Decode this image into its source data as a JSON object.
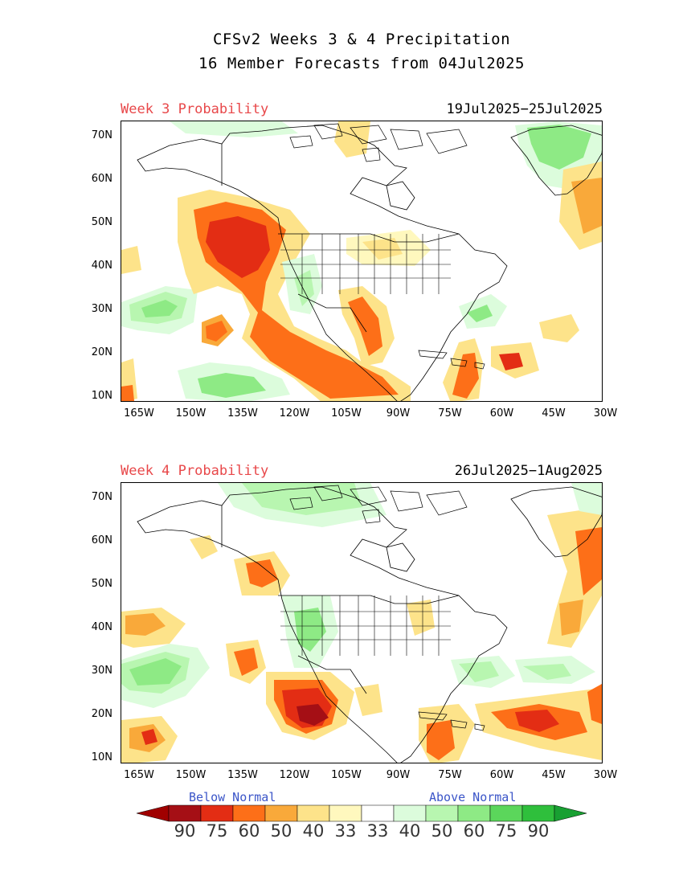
{
  "title_line1": "CFSv2 Weeks 3 & 4 Precipitation",
  "title_line2": "16 Member Forecasts from 04Jul2025",
  "panels": [
    {
      "label": "Week 3 Probability",
      "dates": "19Jul2025−25Jul2025"
    },
    {
      "label": "Week 4 Probability",
      "dates": "26Jul2025−1Aug2025"
    }
  ],
  "lat_ticks": [
    "70N",
    "60N",
    "50N",
    "40N",
    "30N",
    "20N",
    "10N"
  ],
  "lon_ticks": [
    "165W",
    "150W",
    "135W",
    "120W",
    "105W",
    "90W",
    "75W",
    "60W",
    "45W",
    "30W"
  ],
  "legend": {
    "below_label": "Below Normal",
    "above_label": "Above Normal",
    "values": [
      "90",
      "75",
      "60",
      "50",
      "40",
      "33",
      "33",
      "40",
      "50",
      "60",
      "75",
      "90"
    ],
    "colors": [
      "#a50f15",
      "#e32d14",
      "#fd6f18",
      "#f9a93a",
      "#fde38a",
      "#fff8be",
      "#ffffff",
      "#dcfcdc",
      "#b8f6b0",
      "#8eea85",
      "#5bd65b",
      "#2fbf3c"
    ],
    "left_arrow_color": "#a00000",
    "right_arrow_color": "#18a032"
  },
  "chart_data": {
    "type": "map",
    "lat_range": [
      "10N",
      "75N"
    ],
    "lon_range": [
      "170W",
      "30W"
    ]
  }
}
